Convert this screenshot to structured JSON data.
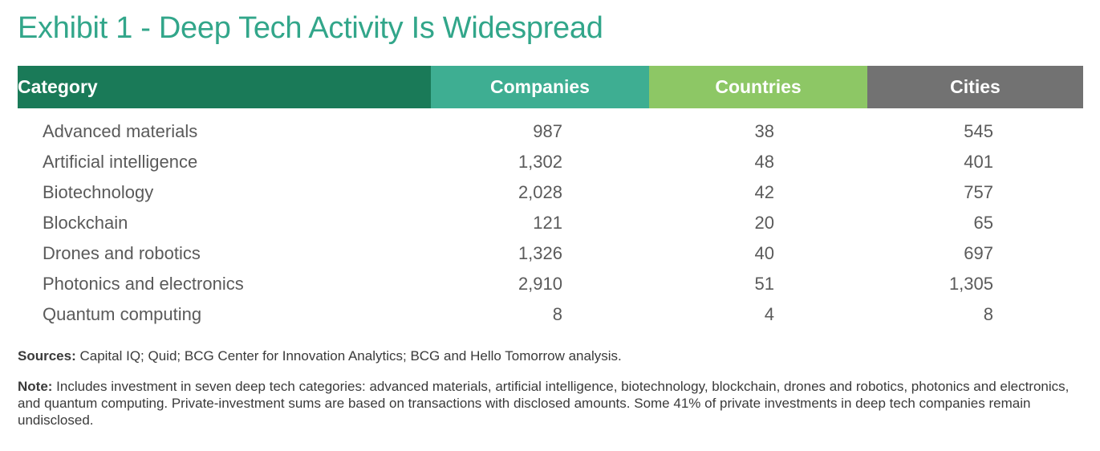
{
  "title": "Exhibit 1 - Deep Tech Activity Is Widespread",
  "colors": {
    "title": "#32a68a",
    "header_category": "#1a7a58",
    "header_companies": "#3eae92",
    "header_countries": "#8dc765",
    "header_cities": "#727272"
  },
  "chart_data": {
    "type": "table",
    "title": "Exhibit 1 - Deep Tech Activity Is Widespread",
    "columns": [
      "Category",
      "Companies",
      "Countries",
      "Cities"
    ],
    "rows": [
      {
        "category": "Advanced materials",
        "companies": "987",
        "countries": "38",
        "cities": "545"
      },
      {
        "category": "Artificial intelligence",
        "companies": "1,302",
        "countries": "48",
        "cities": "401"
      },
      {
        "category": "Biotechnology",
        "companies": "2,028",
        "countries": "42",
        "cities": "757"
      },
      {
        "category": "Blockchain",
        "companies": "121",
        "countries": "20",
        "cities": "65"
      },
      {
        "category": "Drones and robotics",
        "companies": "1,326",
        "countries": "40",
        "cities": "697"
      },
      {
        "category": "Photonics and electronics",
        "companies": "2,910",
        "countries": "51",
        "cities": "1,305"
      },
      {
        "category": "Quantum computing",
        "companies": "8",
        "countries": "4",
        "cities": "8"
      }
    ]
  },
  "footer": {
    "sources_label": "Sources:",
    "sources_text": " Capital IQ; Quid; BCG Center for Innovation Analytics; BCG and Hello Tomorrow analysis.",
    "note_label": "Note:",
    "note_text": " Includes investment in seven deep tech categories: advanced materials, artificial intelligence, biotechnology, blockchain, drones and robotics, photonics and electronics, and quantum computing. Private-investment sums are based on transactions with disclosed amounts. Some 41% of private investments in deep tech companies remain undisclosed."
  }
}
